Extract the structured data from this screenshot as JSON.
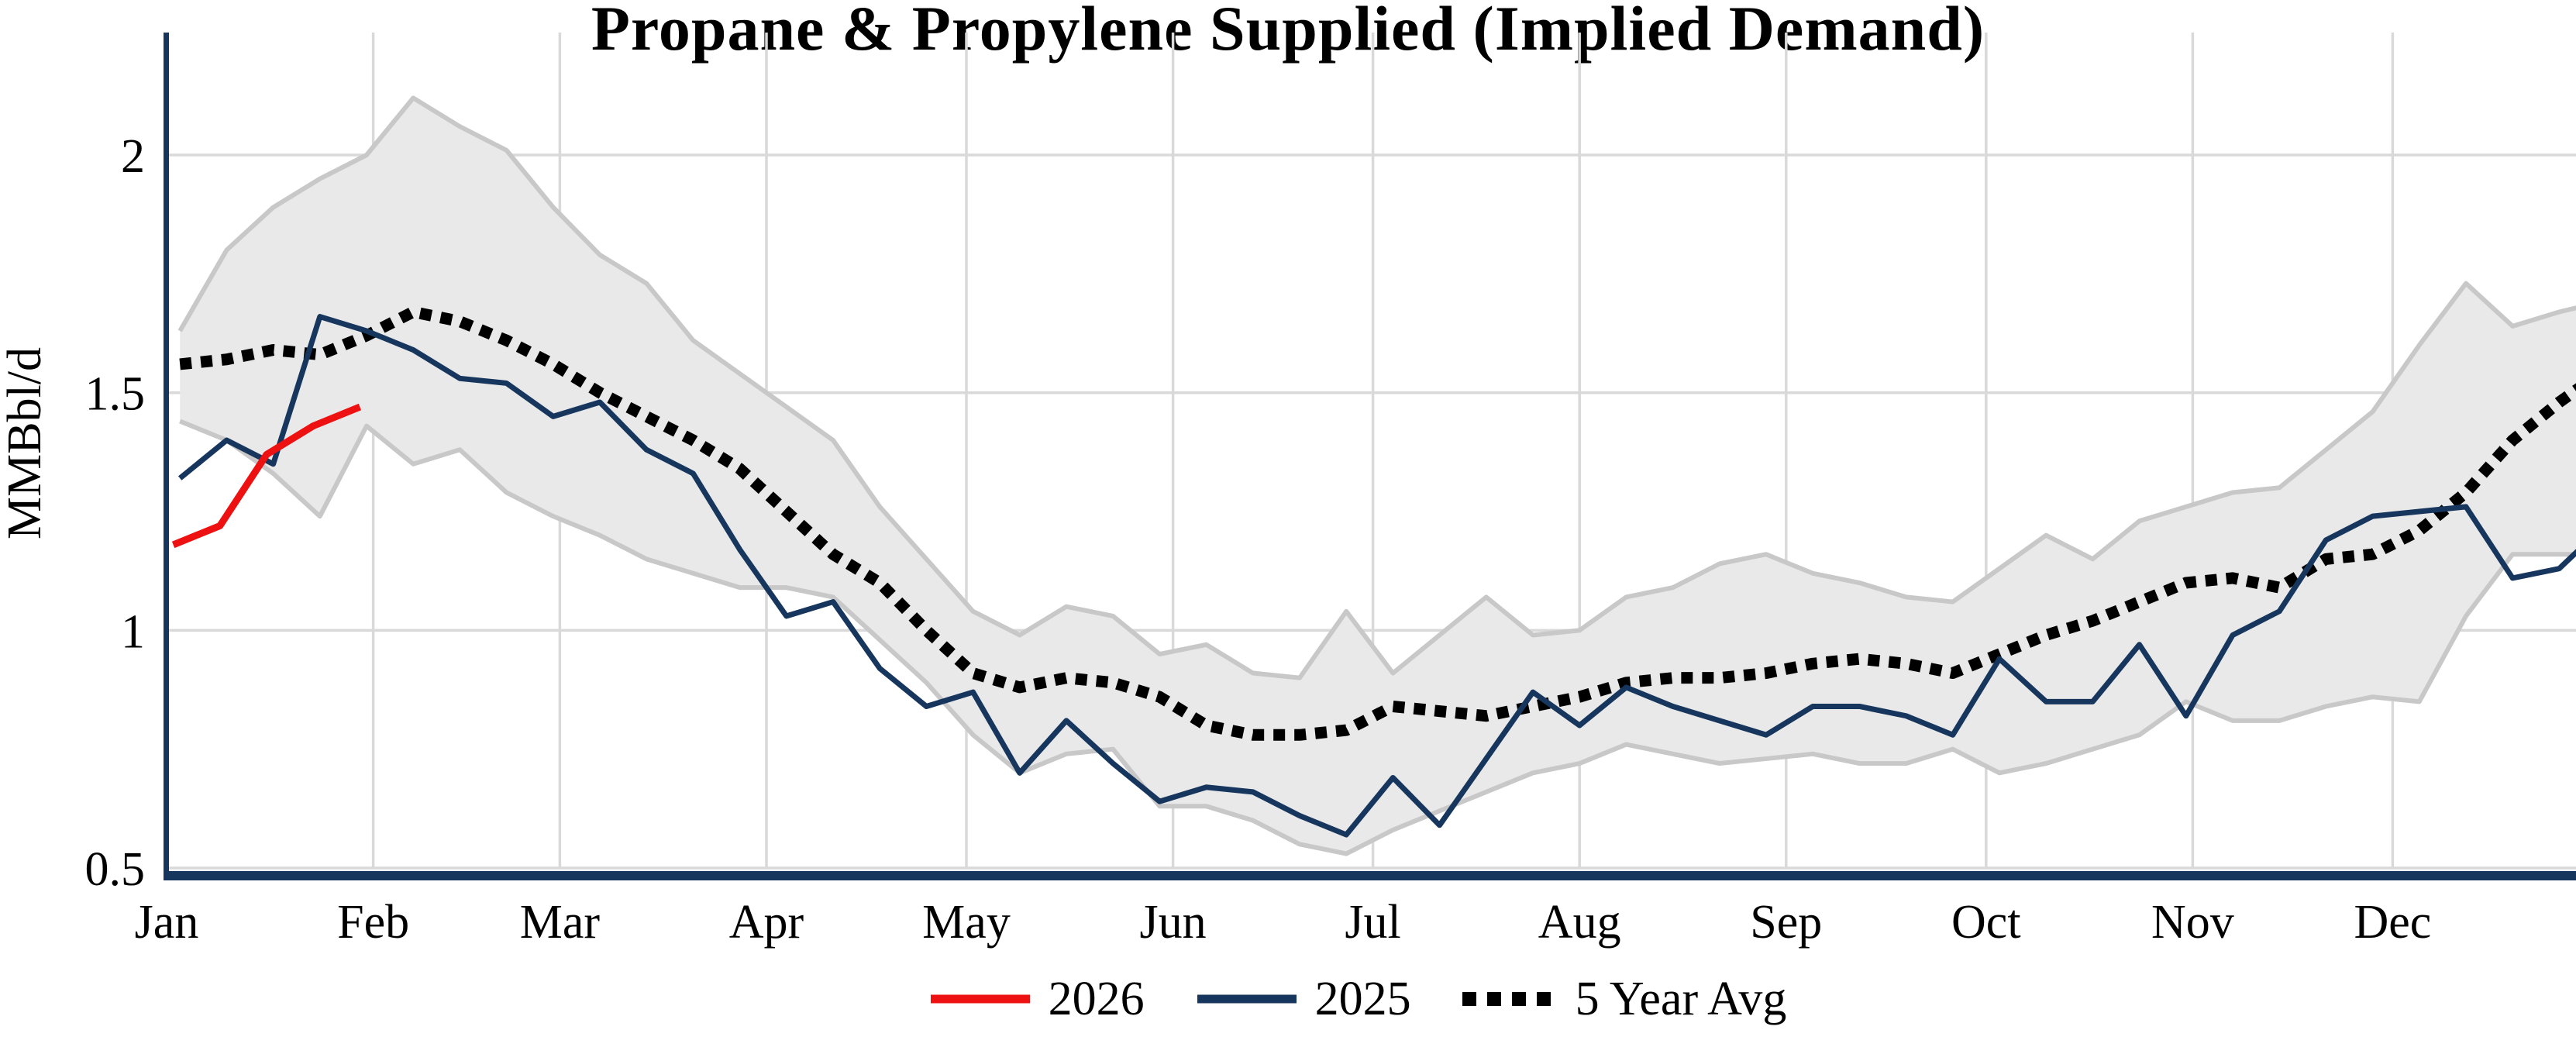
{
  "title": "Propane & Propylene Supplied (Implied Demand)",
  "y_axis": {
    "label": "MMBbl/d",
    "ticks": [
      {
        "value": 2.0,
        "label": "2"
      },
      {
        "value": 1.5,
        "label": "1.5"
      },
      {
        "value": 1.0,
        "label": "1"
      },
      {
        "value": 0.5,
        "label": "0.5"
      }
    ]
  },
  "x_axis": {
    "tick_labels": [
      "Jan",
      "Feb",
      "Mar",
      "Apr",
      "May",
      "Jun",
      "Jul",
      "Aug",
      "Sep",
      "Oct",
      "Nov",
      "Dec"
    ],
    "tick_days": [
      1,
      32,
      60,
      91,
      121,
      152,
      182,
      213,
      244,
      274,
      305,
      335
    ]
  },
  "legend": [
    {
      "label": "2026",
      "color": "#ee1111",
      "style": "solid"
    },
    {
      "label": "2025",
      "color": "#17365d",
      "style": "solid"
    },
    {
      "label": "5 Year Avg",
      "color": "#000000",
      "style": "dotted"
    }
  ],
  "colors": {
    "axis_spine": "#17365d",
    "gridline": "#d9d9d9",
    "band_fill": "#e9e9e9",
    "band_edge": "#c8c8c8",
    "series_2026": "#ee1111",
    "series_2025": "#17365d",
    "series_avg": "#000000"
  },
  "chart_data": {
    "type": "line",
    "title": "Propane & Propylene Supplied (Implied Demand)",
    "xlabel": "",
    "ylabel": "MMBbl/d",
    "ylim": [
      0.5,
      2.27
    ],
    "xlim_days": [
      1,
      363
    ],
    "grid": true,
    "legend_position": "bottom-center",
    "x_tick_labels": [
      "Jan",
      "Feb",
      "Mar",
      "Apr",
      "May",
      "Jun",
      "Jul",
      "Aug",
      "Sep",
      "Oct",
      "Nov",
      "Dec"
    ],
    "x_tick_days": [
      1,
      32,
      60,
      91,
      121,
      152,
      182,
      213,
      244,
      274,
      305,
      335
    ],
    "week_days": [
      3,
      10,
      17,
      24,
      31,
      38,
      45,
      52,
      59,
      66,
      73,
      80,
      87,
      94,
      101,
      108,
      115,
      122,
      129,
      136,
      143,
      150,
      157,
      164,
      171,
      178,
      185,
      192,
      199,
      206,
      213,
      220,
      227,
      234,
      241,
      248,
      255,
      262,
      269,
      276,
      283,
      290,
      297,
      304,
      311,
      318,
      325,
      332,
      339,
      346,
      353,
      360,
      363
    ],
    "band": {
      "name": "5-year range",
      "upper": [
        1.63,
        1.8,
        1.89,
        1.95,
        2.0,
        2.12,
        2.06,
        2.01,
        1.89,
        1.79,
        1.73,
        1.61,
        1.54,
        1.47,
        1.4,
        1.26,
        1.15,
        1.04,
        0.99,
        1.05,
        1.03,
        0.95,
        0.97,
        0.91,
        0.9,
        1.04,
        0.91,
        0.99,
        1.07,
        0.99,
        1.0,
        1.07,
        1.09,
        1.14,
        1.16,
        1.12,
        1.1,
        1.07,
        1.06,
        1.13,
        1.2,
        1.15,
        1.23,
        1.26,
        1.29,
        1.3,
        1.38,
        1.46,
        1.6,
        1.73,
        1.64,
        1.67,
        1.68
      ],
      "lower": [
        1.44,
        1.4,
        1.33,
        1.24,
        1.43,
        1.35,
        1.38,
        1.29,
        1.24,
        1.2,
        1.15,
        1.12,
        1.09,
        1.09,
        1.07,
        0.98,
        0.89,
        0.78,
        0.7,
        0.74,
        0.75,
        0.63,
        0.63,
        0.6,
        0.55,
        0.53,
        0.58,
        0.62,
        0.66,
        0.7,
        0.72,
        0.76,
        0.74,
        0.72,
        0.73,
        0.74,
        0.72,
        0.72,
        0.75,
        0.7,
        0.72,
        0.75,
        0.78,
        0.85,
        0.81,
        0.81,
        0.84,
        0.86,
        0.85,
        1.03,
        1.16,
        1.16,
        1.16
      ]
    },
    "series": [
      {
        "name": "2025",
        "color": "#17365d",
        "dash": "solid",
        "width": 7,
        "days": [
          3,
          10,
          17,
          24,
          31,
          38,
          45,
          52,
          59,
          66,
          73,
          80,
          87,
          94,
          101,
          108,
          115,
          122,
          129,
          136,
          143,
          150,
          157,
          164,
          171,
          178,
          185,
          192,
          199,
          206,
          213,
          220,
          227,
          234,
          241,
          248,
          255,
          262,
          269,
          276,
          283,
          290,
          297,
          304,
          311,
          318,
          325,
          332,
          339,
          346,
          353,
          360,
          363
        ],
        "values": [
          1.32,
          1.4,
          1.35,
          1.66,
          1.63,
          1.59,
          1.53,
          1.52,
          1.45,
          1.48,
          1.38,
          1.33,
          1.17,
          1.03,
          1.06,
          0.92,
          0.84,
          0.87,
          0.7,
          0.81,
          0.72,
          0.64,
          0.67,
          0.66,
          0.61,
          0.57,
          0.69,
          0.59,
          0.73,
          0.87,
          0.8,
          0.88,
          0.84,
          0.81,
          0.78,
          0.84,
          0.84,
          0.82,
          0.78,
          0.94,
          0.85,
          0.85,
          0.97,
          0.82,
          0.99,
          1.04,
          1.19,
          1.24,
          1.25,
          1.26,
          1.11,
          1.13,
          1.17
        ]
      },
      {
        "name": "5 Year Avg",
        "color": "#000000",
        "dash": "dotted",
        "width": 15,
        "days": [
          3,
          10,
          17,
          24,
          31,
          38,
          45,
          52,
          59,
          66,
          73,
          80,
          87,
          94,
          101,
          108,
          115,
          122,
          129,
          136,
          143,
          150,
          157,
          164,
          171,
          178,
          185,
          192,
          199,
          206,
          213,
          220,
          227,
          234,
          241,
          248,
          255,
          262,
          269,
          276,
          283,
          290,
          297,
          304,
          311,
          318,
          325,
          332,
          339,
          346,
          353,
          360,
          363
        ],
        "values": [
          1.56,
          1.57,
          1.59,
          1.58,
          1.62,
          1.67,
          1.65,
          1.61,
          1.56,
          1.5,
          1.45,
          1.4,
          1.34,
          1.25,
          1.16,
          1.1,
          1.0,
          0.91,
          0.88,
          0.9,
          0.89,
          0.86,
          0.8,
          0.78,
          0.78,
          0.79,
          0.84,
          0.83,
          0.82,
          0.84,
          0.86,
          0.89,
          0.9,
          0.9,
          0.91,
          0.93,
          0.94,
          0.93,
          0.91,
          0.95,
          0.99,
          1.02,
          1.06,
          1.1,
          1.11,
          1.09,
          1.15,
          1.16,
          1.21,
          1.29,
          1.4,
          1.48,
          1.51
        ]
      },
      {
        "name": "2026",
        "color": "#ee1111",
        "dash": "solid",
        "width": 9,
        "days": [
          2,
          9,
          16,
          23,
          30
        ],
        "values": [
          1.18,
          1.22,
          1.37,
          1.43,
          1.47
        ]
      }
    ]
  }
}
